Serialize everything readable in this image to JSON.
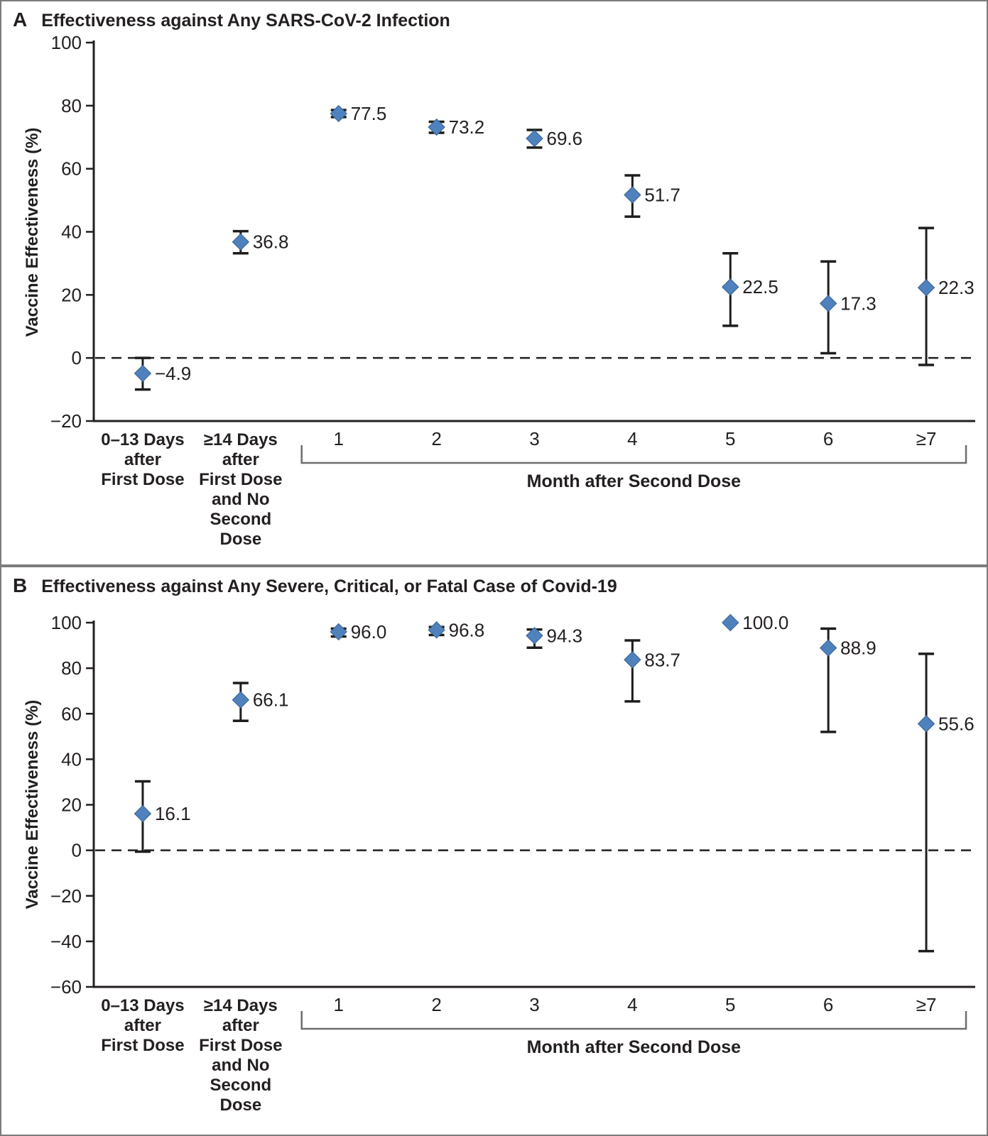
{
  "figure": {
    "background": "#ffffff",
    "marker_color": "#4f81bd",
    "marker_edge_color": "#38618f",
    "error_bar_color": "#1d1d1b",
    "axis_color": "#231f20",
    "bracket_color": "#6e6e6e",
    "panel_border_color": "#7c7c7c"
  },
  "chart_data": [
    {
      "type": "scatter",
      "panel": "A",
      "title": "Effectiveness against Any SARS-CoV-2 Infection",
      "ylabel": "Vaccine Effectiveness (%)",
      "xlabel": "Month after Second Dose",
      "ylim": [
        -20,
        100
      ],
      "yticks": [
        100,
        80,
        60,
        40,
        20,
        0,
        -20
      ],
      "grid": false,
      "zero_reference_line": "dashed",
      "legend": "none",
      "categories": [
        [
          "0–13 Days",
          "after",
          "First Dose"
        ],
        [
          "≥14 Days",
          "after",
          "First Dose",
          "and No",
          "Second",
          "Dose"
        ],
        [
          "1"
        ],
        [
          "2"
        ],
        [
          "3"
        ],
        [
          "4"
        ],
        [
          "5"
        ],
        [
          "6"
        ],
        [
          "≥7"
        ]
      ],
      "bracket": {
        "from_category": 2,
        "to_category": 8,
        "label": "Month after Second Dose"
      },
      "points": [
        {
          "category": "0–13 Days after First Dose",
          "value": -4.9,
          "label": "−4.9",
          "ci": [
            -10.0,
            0.0
          ]
        },
        {
          "category": "≥14 Days after First Dose and No Second Dose",
          "value": 36.8,
          "label": "36.8",
          "ci": [
            33.2,
            40.2
          ]
        },
        {
          "category": "1",
          "value": 77.5,
          "label": "77.5",
          "ci": [
            76.4,
            78.6
          ]
        },
        {
          "category": "2",
          "value": 73.2,
          "label": "73.2",
          "ci": [
            71.4,
            74.9
          ]
        },
        {
          "category": "3",
          "value": 69.6,
          "label": "69.6",
          "ci": [
            66.7,
            72.3
          ]
        },
        {
          "category": "4",
          "value": 51.7,
          "label": "51.7",
          "ci": [
            44.8,
            57.9
          ]
        },
        {
          "category": "5",
          "value": 22.5,
          "label": "22.5",
          "ci": [
            10.2,
            33.2
          ]
        },
        {
          "category": "6",
          "value": 17.3,
          "label": "17.3",
          "ci": [
            1.5,
            30.6
          ]
        },
        {
          "category": "≥7",
          "value": 22.3,
          "label": "22.3",
          "ci": [
            -2.2,
            41.2
          ]
        }
      ]
    },
    {
      "type": "scatter",
      "panel": "B",
      "title": "Effectiveness against Any Severe, Critical, or Fatal Case of Covid-19",
      "ylabel": "Vaccine Effectiveness (%)",
      "xlabel": "Month after Second Dose",
      "ylim": [
        -60,
        100
      ],
      "yticks": [
        100,
        80,
        60,
        40,
        20,
        0,
        -20,
        -40,
        -60
      ],
      "grid": false,
      "zero_reference_line": "dashed",
      "legend": "none",
      "categories": [
        [
          "0–13 Days",
          "after",
          "First Dose"
        ],
        [
          "≥14 Days",
          "after",
          "First Dose",
          "and No",
          "Second",
          "Dose"
        ],
        [
          "1"
        ],
        [
          "2"
        ],
        [
          "3"
        ],
        [
          "4"
        ],
        [
          "5"
        ],
        [
          "6"
        ],
        [
          "≥7"
        ]
      ],
      "bracket": {
        "from_category": 2,
        "to_category": 8,
        "label": "Month after Second Dose"
      },
      "points": [
        {
          "category": "0–13 Days after First Dose",
          "value": 16.1,
          "label": "16.1",
          "ci": [
            -0.6,
            30.3
          ]
        },
        {
          "category": "≥14 Days after First Dose and No Second Dose",
          "value": 66.1,
          "label": "66.1",
          "ci": [
            56.9,
            73.5
          ]
        },
        {
          "category": "1",
          "value": 96.0,
          "label": "96.0",
          "ci": [
            93.9,
            97.4
          ]
        },
        {
          "category": "2",
          "value": 96.8,
          "label": "96.8",
          "ci": [
            94.6,
            98.1
          ]
        },
        {
          "category": "3",
          "value": 94.3,
          "label": "94.3",
          "ci": [
            89.0,
            97.0
          ]
        },
        {
          "category": "4",
          "value": 83.7,
          "label": "83.7",
          "ci": [
            65.4,
            92.2
          ]
        },
        {
          "category": "5",
          "value": 100.0,
          "label": "100.0",
          "ci": null
        },
        {
          "category": "6",
          "value": 88.9,
          "label": "88.9",
          "ci": [
            52.0,
            97.4
          ]
        },
        {
          "category": "≥7",
          "value": 55.6,
          "label": "55.6",
          "ci": [
            -44.3,
            86.3
          ]
        }
      ]
    }
  ]
}
